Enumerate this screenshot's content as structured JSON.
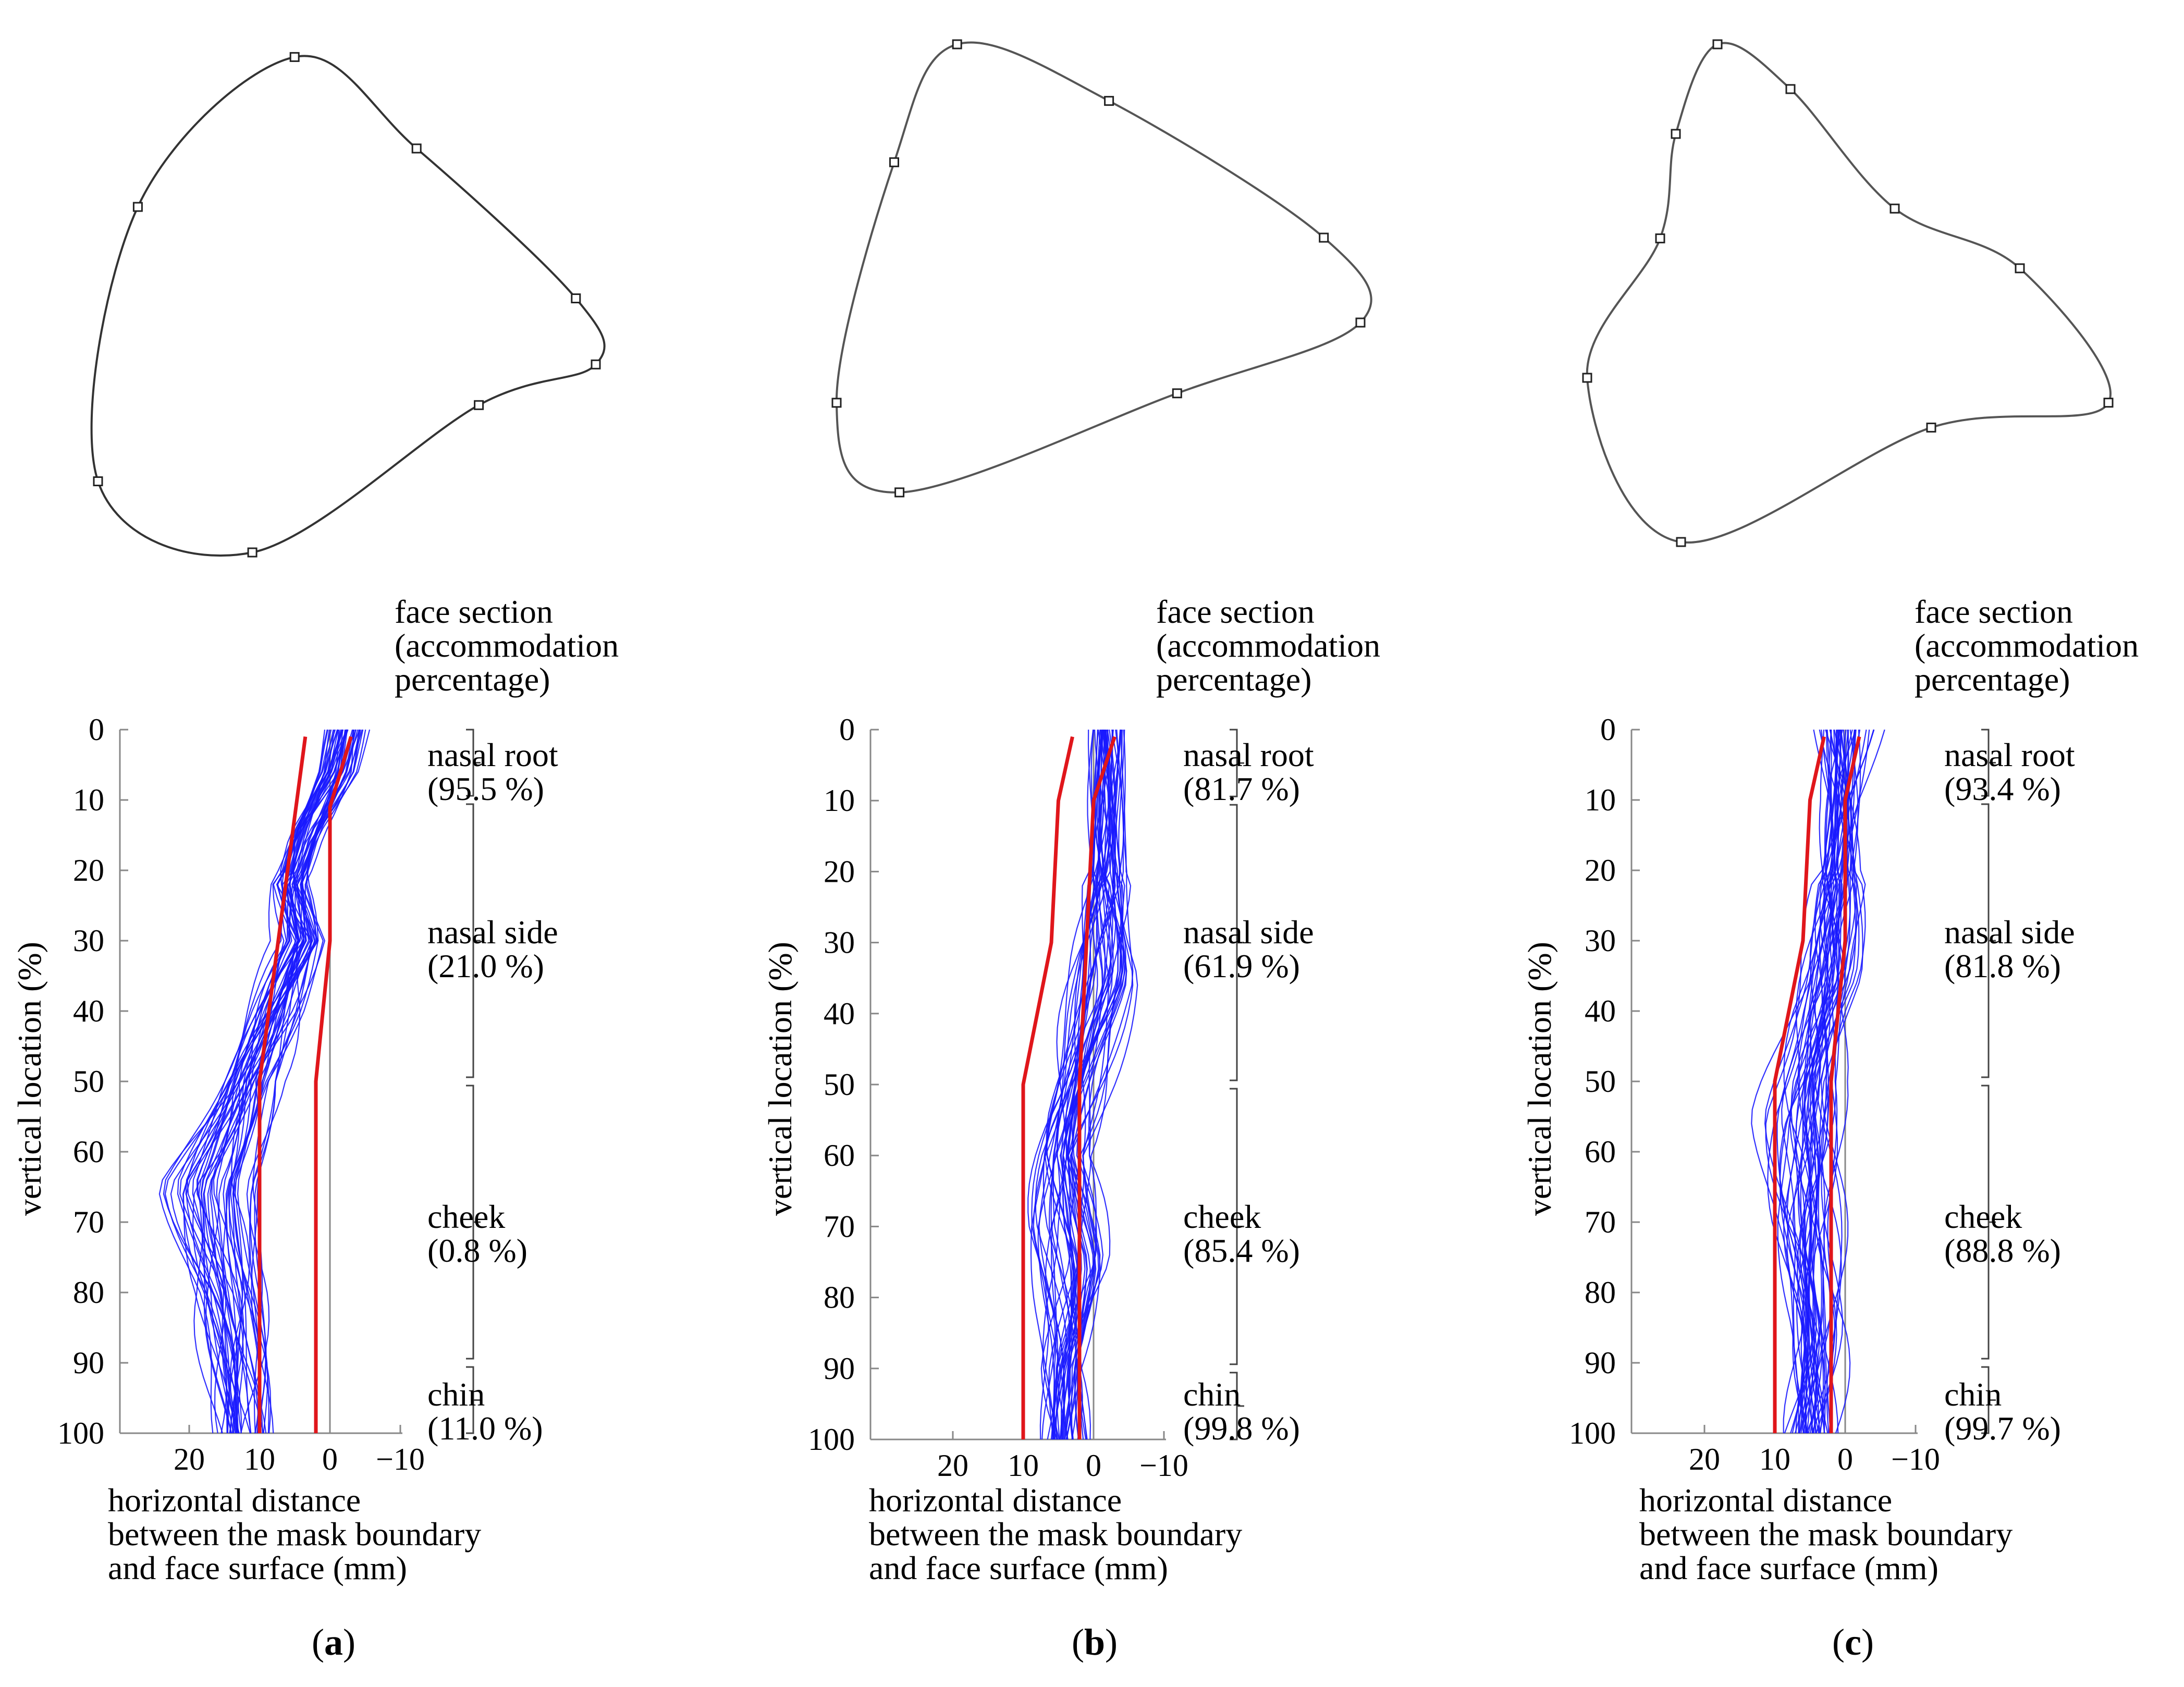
{
  "face_section_header": [
    "face section",
    "(accommodation",
    "percentage)"
  ],
  "x_axis_label": [
    "horizontal distance",
    "between the mask boundary",
    "and face surface (mm)"
  ],
  "y_axis_label": "vertical location (%)",
  "panels": [
    {
      "id": "a",
      "caption_open": "(",
      "caption_letter": "a",
      "caption_close": ")",
      "sections": [
        {
          "name": "nasal root",
          "pct": "(95.5 %)"
        },
        {
          "name": "nasal side",
          "pct": "(21.0 %)"
        },
        {
          "name": "cheek",
          "pct": "(0.8 %)"
        },
        {
          "name": "chin",
          "pct": "(11.0 %)"
        }
      ]
    },
    {
      "id": "b",
      "caption_open": "(",
      "caption_letter": "b",
      "caption_close": ")",
      "sections": [
        {
          "name": "nasal root",
          "pct": "(81.7 %)"
        },
        {
          "name": "nasal side",
          "pct": "(61.9 %)"
        },
        {
          "name": "cheek",
          "pct": "(85.4 %)"
        },
        {
          "name": "chin",
          "pct": "(99.8 %)"
        }
      ]
    },
    {
      "id": "c",
      "caption_open": "(",
      "caption_letter": "c",
      "caption_close": ")",
      "sections": [
        {
          "name": "nasal root",
          "pct": "(93.4 %)"
        },
        {
          "name": "nasal side",
          "pct": "(81.8 %)"
        },
        {
          "name": "cheek",
          "pct": "(88.8 %)"
        },
        {
          "name": "chin",
          "pct": "(99.7 %)"
        }
      ]
    }
  ],
  "chart_data": [
    {
      "type": "line",
      "panel": "a",
      "xlabel": "horizontal distance between the mask boundary and face surface (mm)",
      "ylabel": "vertical location (%)",
      "x_reversed": true,
      "xlim": [
        30,
        -10
      ],
      "ylim": [
        0,
        100
      ],
      "xticks": [
        20,
        10,
        0,
        -10
      ],
      "xtick_labels": [
        "20",
        "10",
        "0",
        "−10"
      ],
      "yticks": [
        0,
        10,
        20,
        30,
        40,
        50,
        60,
        70,
        80,
        90,
        100
      ],
      "ytick_labels": [
        "0",
        "10",
        "20",
        "30",
        "40",
        "50",
        "60",
        "70",
        "80",
        "90",
        "100"
      ],
      "section_boundaries": [
        0,
        10,
        50,
        90,
        100
      ],
      "colors": {
        "curves": "#1a1aff",
        "limits": "#e0161b",
        "zero_line": "#888888",
        "axes": "#888888"
      },
      "limit_lines": [
        {
          "name": "outer limit",
          "points": [
            [
              3.5,
              1
            ],
            [
              10,
              50
            ],
            [
              10,
              100
            ]
          ]
        },
        {
          "name": "inner limit",
          "points": [
            [
              -3,
              1
            ],
            [
              0,
              11
            ],
            [
              0,
              30
            ],
            [
              2,
              50
            ],
            [
              2,
              100
            ]
          ]
        }
      ],
      "curve_count": 44,
      "representative_curves": {
        "upper": [
          [
            -4,
            0
          ],
          [
            -2,
            6
          ],
          [
            4,
            15
          ],
          [
            6,
            22
          ],
          [
            5,
            30
          ],
          [
            10,
            40
          ],
          [
            17,
            55
          ],
          [
            22,
            65
          ],
          [
            18,
            80
          ],
          [
            15,
            100
          ]
        ],
        "lower": [
          [
            -1,
            0
          ],
          [
            0,
            6
          ],
          [
            3,
            15
          ],
          [
            5,
            22
          ],
          [
            2,
            30
          ],
          [
            5,
            40
          ],
          [
            9,
            50
          ],
          [
            11,
            65
          ],
          [
            10,
            80
          ],
          [
            9,
            100
          ]
        ]
      }
    },
    {
      "type": "line",
      "panel": "b",
      "xlabel": "horizontal distance between the mask boundary and face surface (mm)",
      "ylabel": "vertical location (%)",
      "x_reversed": true,
      "xlim": [
        30,
        -10
      ],
      "ylim": [
        0,
        100
      ],
      "xticks": [
        20,
        10,
        0,
        -10
      ],
      "xtick_labels": [
        "20",
        "10",
        "0",
        "−10"
      ],
      "yticks": [
        0,
        10,
        20,
        30,
        40,
        50,
        60,
        70,
        80,
        90,
        100
      ],
      "ytick_labels": [
        "0",
        "10",
        "20",
        "30",
        "40",
        "50",
        "60",
        "70",
        "80",
        "90",
        "100"
      ],
      "section_boundaries": [
        0,
        10,
        50,
        90,
        100
      ],
      "colors": {
        "curves": "#1a1aff",
        "limits": "#e0161b",
        "zero_line": "#888888",
        "axes": "#888888"
      },
      "limit_lines": [
        {
          "name": "outer limit",
          "points": [
            [
              3,
              1
            ],
            [
              5,
              10
            ],
            [
              6,
              30
            ],
            [
              10,
              50
            ],
            [
              10,
              100
            ]
          ]
        },
        {
          "name": "inner limit",
          "points": [
            [
              -3,
              1
            ],
            [
              0,
              10
            ],
            [
              1,
              30
            ],
            [
              2,
              50
            ],
            [
              2,
              100
            ]
          ]
        }
      ],
      "curve_count": 44,
      "representative_curves": {
        "upper": [
          [
            -1,
            0
          ],
          [
            -1,
            15
          ],
          [
            0,
            25
          ],
          [
            3,
            40
          ],
          [
            6,
            55
          ],
          [
            7,
            70
          ],
          [
            6,
            85
          ],
          [
            6,
            100
          ]
        ],
        "lower": [
          [
            -3,
            0
          ],
          [
            -3,
            15
          ],
          [
            -5,
            35
          ],
          [
            -2,
            45
          ],
          [
            2,
            60
          ],
          [
            -1,
            75
          ],
          [
            2,
            90
          ],
          [
            2,
            100
          ]
        ]
      }
    },
    {
      "type": "line",
      "panel": "c",
      "xlabel": "horizontal distance between the mask boundary and face surface (mm)",
      "ylabel": "vertical location (%)",
      "x_reversed": true,
      "xlim": [
        30,
        -10
      ],
      "ylim": [
        0,
        100
      ],
      "xticks": [
        20,
        10,
        0,
        -10
      ],
      "xtick_labels": [
        "20",
        "10",
        "0",
        "−10"
      ],
      "yticks": [
        0,
        10,
        20,
        30,
        40,
        50,
        60,
        70,
        80,
        90,
        100
      ],
      "ytick_labels": [
        "0",
        "10",
        "20",
        "30",
        "40",
        "50",
        "60",
        "70",
        "80",
        "90",
        "100"
      ],
      "section_boundaries": [
        0,
        10,
        50,
        90,
        100
      ],
      "colors": {
        "curves": "#1a1aff",
        "limits": "#e0161b",
        "zero_line": "#888888",
        "axes": "#888888"
      },
      "limit_lines": [
        {
          "name": "outer limit",
          "points": [
            [
              3,
              1
            ],
            [
              5,
              10
            ],
            [
              6,
              30
            ],
            [
              10,
              50
            ],
            [
              10,
              100
            ]
          ]
        },
        {
          "name": "inner limit",
          "points": [
            [
              -2,
              1
            ],
            [
              0,
              10
            ],
            [
              0,
              30
            ],
            [
              2,
              50
            ],
            [
              2,
              100
            ]
          ]
        }
      ],
      "curve_count": 44,
      "representative_curves": {
        "upper": [
          [
            -3,
            0
          ],
          [
            0,
            10
          ],
          [
            3,
            25
          ],
          [
            7,
            40
          ],
          [
            10,
            55
          ],
          [
            9,
            70
          ],
          [
            7,
            85
          ],
          [
            7,
            100
          ]
        ],
        "lower": [
          [
            3,
            0
          ],
          [
            1,
            10
          ],
          [
            0,
            25
          ],
          [
            -1,
            35
          ],
          [
            2,
            50
          ],
          [
            2,
            70
          ],
          [
            2,
            85
          ],
          [
            3,
            100
          ]
        ]
      }
    }
  ],
  "shapes": [
    {
      "panel": "a",
      "stroke": "#333333",
      "control_points": [
        [
          0.395,
          0.025
        ],
        [
          0.64,
          0.205
        ],
        [
          0.96,
          0.5
        ],
        [
          1.0,
          0.63
        ],
        [
          0.765,
          0.71
        ],
        [
          0.31,
          1.0
        ],
        [
          0.0,
          0.86
        ],
        [
          0.08,
          0.32
        ]
      ]
    },
    {
      "panel": "b",
      "stroke": "#555555",
      "control_points": [
        [
          0.23,
          0.0
        ],
        [
          0.52,
          0.12
        ],
        [
          0.93,
          0.41
        ],
        [
          1.0,
          0.59
        ],
        [
          0.65,
          0.74
        ],
        [
          0.12,
          0.95
        ],
        [
          0.0,
          0.76
        ],
        [
          0.11,
          0.25
        ]
      ]
    },
    {
      "panel": "c",
      "stroke": "#555555",
      "control_points": [
        [
          0.25,
          0.0
        ],
        [
          0.39,
          0.09
        ],
        [
          0.59,
          0.33
        ],
        [
          0.83,
          0.45
        ],
        [
          1.0,
          0.72
        ],
        [
          0.66,
          0.77
        ],
        [
          0.18,
          1.0
        ],
        [
          0.0,
          0.67
        ],
        [
          0.14,
          0.39
        ],
        [
          0.17,
          0.18
        ]
      ]
    }
  ]
}
